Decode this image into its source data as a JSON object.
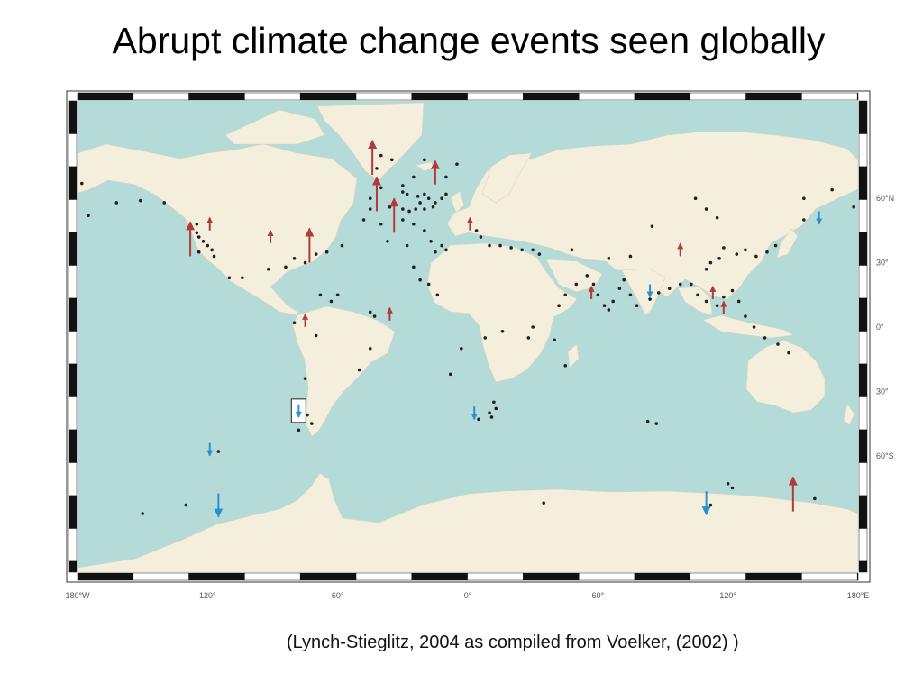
{
  "title": "Abrupt climate change events seen globally",
  "citation": "(Lynch-Stieglitz, 2004 as compiled from Voelker, (2002) )",
  "map": {
    "projection": "cylindrical",
    "lon_labels": [
      "180°W",
      "120°",
      "60°",
      "0°",
      "60°",
      "120°",
      "180°E"
    ],
    "lon_values": [
      -180,
      -120,
      -60,
      0,
      60,
      120,
      180
    ],
    "lat_labels": [
      "60°N",
      "30°",
      "0°",
      "30°",
      "60°S"
    ],
    "lat_values": [
      60,
      30,
      0,
      -30,
      -60
    ],
    "colors": {
      "ocean": "#b5dbd9",
      "land": "#f4efdc",
      "warm_arrow": "#b23a3a",
      "cold_arrow": "#2e8fcf",
      "site": "#222222"
    },
    "legend": {
      "warm_arrow_icon": "red-up-arrow-icon",
      "cold_arrow_icon": "blue-down-arrow-icon",
      "site_icon": "core-site-dot-icon"
    },
    "warm_arrows": [
      {
        "lon": -44,
        "lat": 79,
        "size": "large"
      },
      {
        "lon": -15,
        "lat": 72,
        "size": "medium"
      },
      {
        "lon": -42,
        "lat": 62,
        "size": "large"
      },
      {
        "lon": -34,
        "lat": 52,
        "size": "large"
      },
      {
        "lon": -128,
        "lat": 41,
        "size": "large"
      },
      {
        "lon": -119,
        "lat": 48,
        "size": "small"
      },
      {
        "lon": -91,
        "lat": 42,
        "size": "small"
      },
      {
        "lon": -73,
        "lat": 38,
        "size": "large"
      },
      {
        "lon": 1,
        "lat": 48,
        "size": "small"
      },
      {
        "lon": -36,
        "lat": 6,
        "size": "small"
      },
      {
        "lon": -75,
        "lat": 3,
        "size": "small"
      },
      {
        "lon": 57,
        "lat": 16,
        "size": "small"
      },
      {
        "lon": 98,
        "lat": 36,
        "size": "small"
      },
      {
        "lon": 113,
        "lat": 16,
        "size": "small"
      },
      {
        "lon": 118,
        "lat": 9,
        "size": "small"
      },
      {
        "lon": 150,
        "lat": -78,
        "size": "large"
      }
    ],
    "cold_arrows": [
      {
        "lon": 84,
        "lat": 17,
        "size": "small"
      },
      {
        "lon": 162,
        "lat": 51,
        "size": "small"
      },
      {
        "lon": 3,
        "lat": -40,
        "size": "small"
      },
      {
        "lon": -78,
        "lat": -39,
        "size": "small",
        "boxed": true
      },
      {
        "lon": -119,
        "lat": -57,
        "size": "small"
      },
      {
        "lon": -115,
        "lat": -83,
        "size": "medium"
      },
      {
        "lon": 110,
        "lat": -82,
        "size": "medium"
      }
    ],
    "sites": [
      [
        -40,
        80
      ],
      [
        -35,
        78
      ],
      [
        -42,
        74
      ],
      [
        -20,
        78
      ],
      [
        -5,
        76
      ],
      [
        -10,
        70
      ],
      [
        -25,
        70
      ],
      [
        -30,
        66
      ],
      [
        -40,
        65
      ],
      [
        -45,
        60
      ],
      [
        -30,
        63
      ],
      [
        -28,
        62
      ],
      [
        -20,
        62
      ],
      [
        -23,
        61
      ],
      [
        -22,
        58
      ],
      [
        -18,
        60
      ],
      [
        -15,
        58
      ],
      [
        -12,
        60
      ],
      [
        -10,
        62
      ],
      [
        -16,
        56
      ],
      [
        -20,
        55
      ],
      [
        -24,
        55
      ],
      [
        -27,
        54
      ],
      [
        -30,
        55
      ],
      [
        -36,
        56
      ],
      [
        -45,
        55
      ],
      [
        -48,
        50
      ],
      [
        -40,
        48
      ],
      [
        -30,
        50
      ],
      [
        -25,
        48
      ],
      [
        -20,
        45
      ],
      [
        -17,
        40
      ],
      [
        -12,
        38
      ],
      [
        -10,
        36
      ],
      [
        -28,
        38
      ],
      [
        -37,
        40
      ],
      [
        -58,
        38
      ],
      [
        -65,
        35
      ],
      [
        -70,
        34
      ],
      [
        -75,
        30
      ],
      [
        -80,
        32
      ],
      [
        -84,
        28
      ],
      [
        -92,
        27
      ],
      [
        -104,
        23
      ],
      [
        -110,
        23
      ],
      [
        -125,
        48
      ],
      [
        -125,
        44
      ],
      [
        -124,
        42
      ],
      [
        -122,
        40
      ],
      [
        -120,
        38
      ],
      [
        -118,
        36
      ],
      [
        -117,
        33
      ],
      [
        -124,
        35
      ],
      [
        -162,
        58
      ],
      [
        -151,
        59
      ],
      [
        -68,
        15
      ],
      [
        -60,
        15
      ],
      [
        -63,
        12
      ],
      [
        -45,
        7
      ],
      [
        -43,
        5
      ],
      [
        -80,
        2
      ],
      [
        -70,
        -4
      ],
      [
        -75,
        -24
      ],
      [
        -74,
        -41
      ],
      [
        -72,
        -45
      ],
      [
        -78,
        -48
      ],
      [
        -45,
        -10
      ],
      [
        -50,
        -20
      ],
      [
        -115,
        -58
      ],
      [
        4,
        45
      ],
      [
        6,
        42
      ],
      [
        10,
        38
      ],
      [
        15,
        38
      ],
      [
        20,
        37
      ],
      [
        25,
        36
      ],
      [
        30,
        36
      ],
      [
        33,
        34
      ],
      [
        48,
        36
      ],
      [
        55,
        24
      ],
      [
        58,
        20
      ],
      [
        60,
        15
      ],
      [
        63,
        10
      ],
      [
        65,
        8
      ],
      [
        67,
        12
      ],
      [
        70,
        18
      ],
      [
        72,
        22
      ],
      [
        75,
        15
      ],
      [
        78,
        10
      ],
      [
        84,
        13
      ],
      [
        88,
        16
      ],
      [
        93,
        18
      ],
      [
        98,
        20
      ],
      [
        103,
        20
      ],
      [
        106,
        15
      ],
      [
        110,
        12
      ],
      [
        115,
        10
      ],
      [
        118,
        14
      ],
      [
        122,
        17
      ],
      [
        125,
        12
      ],
      [
        128,
        5
      ],
      [
        132,
        0
      ],
      [
        137,
        -5
      ],
      [
        143,
        -8
      ],
      [
        148,
        -12
      ],
      [
        110,
        27
      ],
      [
        112,
        30
      ],
      [
        116,
        32
      ],
      [
        118,
        37
      ],
      [
        124,
        34
      ],
      [
        128,
        36
      ],
      [
        133,
        33
      ],
      [
        138,
        35
      ],
      [
        142,
        38
      ],
      [
        155,
        50
      ],
      [
        105,
        60
      ],
      [
        110,
        55
      ],
      [
        115,
        51
      ],
      [
        85,
        47
      ],
      [
        75,
        33
      ],
      [
        65,
        32
      ],
      [
        50,
        20
      ],
      [
        45,
        15
      ],
      [
        42,
        10
      ],
      [
        30,
        0
      ],
      [
        28,
        -5
      ],
      [
        40,
        -6
      ],
      [
        45,
        -18
      ],
      [
        13,
        -38
      ],
      [
        10,
        -40
      ],
      [
        11,
        -42
      ],
      [
        12,
        -35
      ],
      [
        5,
        -43
      ],
      [
        83,
        -44
      ],
      [
        87,
        -45
      ],
      [
        120,
        -73
      ],
      [
        122,
        -75
      ],
      [
        112,
        -83
      ],
      [
        160,
        -80
      ],
      [
        -130,
        -83
      ],
      [
        -150,
        -87
      ],
      [
        35,
        -82
      ],
      [
        -15,
        35
      ],
      [
        -25,
        28
      ],
      [
        -18,
        20
      ],
      [
        -22,
        22
      ],
      [
        -14,
        15
      ],
      [
        -8,
        -22
      ],
      [
        16,
        -2
      ],
      [
        8,
        -5
      ],
      [
        -3,
        -10
      ],
      [
        155,
        60
      ],
      [
        168,
        64
      ],
      [
        178,
        56
      ],
      [
        -175,
        52
      ],
      [
        -140,
        58
      ],
      [
        -178,
        67
      ]
    ]
  }
}
